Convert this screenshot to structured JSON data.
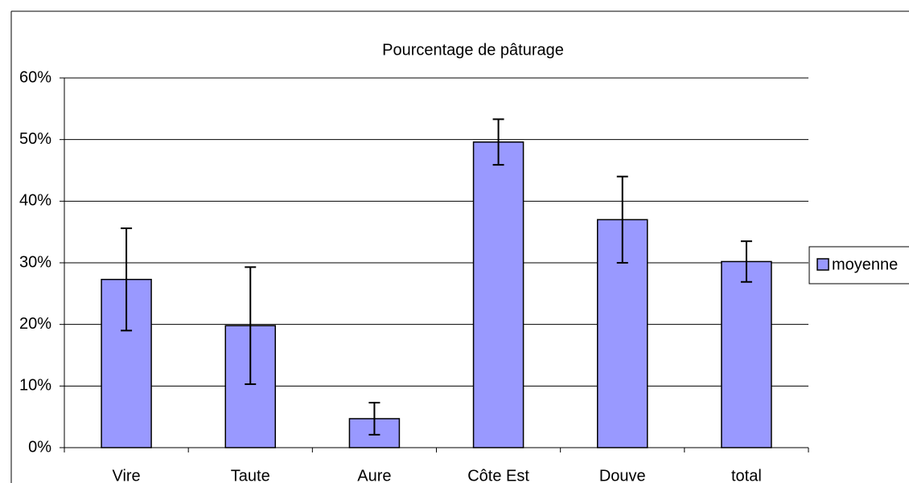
{
  "chart_data": {
    "type": "bar",
    "title": "Pourcentage de pâturage",
    "categories": [
      "Vire",
      "Taute",
      "Aure",
      "Côte Est",
      "Douve",
      "total"
    ],
    "series": [
      {
        "name": "moyenne",
        "color": "#9999ff",
        "values": [
          27.3,
          19.8,
          4.7,
          49.6,
          37.0,
          30.2
        ],
        "errors": [
          8.3,
          9.5,
          2.6,
          3.7,
          7.0,
          3.3
        ]
      }
    ],
    "ylim": [
      0,
      60
    ],
    "yticks": [
      {
        "value": 0,
        "label": "0%"
      },
      {
        "value": 10,
        "label": "10%"
      },
      {
        "value": 20,
        "label": "20%"
      },
      {
        "value": 30,
        "label": "30%"
      },
      {
        "value": 40,
        "label": "40%"
      },
      {
        "value": 50,
        "label": "50%"
      },
      {
        "value": 60,
        "label": "60%"
      }
    ],
    "grid": true,
    "legend": "right"
  }
}
